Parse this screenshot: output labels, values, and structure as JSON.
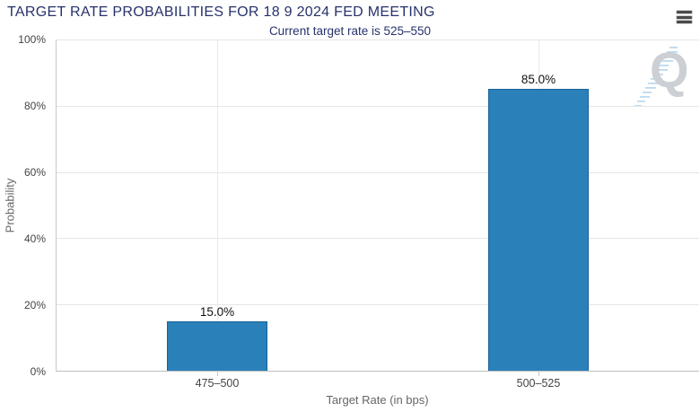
{
  "chart_data": {
    "type": "bar",
    "title": "TARGET RATE PROBABILITIES FOR 18 9 2024 FED MEETING",
    "subtitle": "Current target rate is 525–550",
    "categories": [
      "475–500",
      "500–525"
    ],
    "values": [
      15.0,
      85.0
    ],
    "value_labels": [
      "15.0%",
      "85.0%"
    ],
    "xlabel": "Target Rate (in bps)",
    "ylabel": "Probability",
    "ylim": [
      0,
      100
    ],
    "y_ticks": [
      "0%",
      "20%",
      "40%",
      "60%",
      "80%",
      "100%"
    ],
    "grid": true,
    "legend": "none",
    "bar_color": "#2a80b9",
    "bar_border_color": "#1a6398"
  },
  "colors": {
    "title_navy": "#27326b",
    "gridline": "#e6e6e6",
    "axis_line": "#c9c9c9",
    "tick_label": "#444444",
    "axis_title": "#666666"
  },
  "menu": {
    "icon": "hamburger-icon"
  },
  "watermark": {
    "letter": "Q"
  }
}
